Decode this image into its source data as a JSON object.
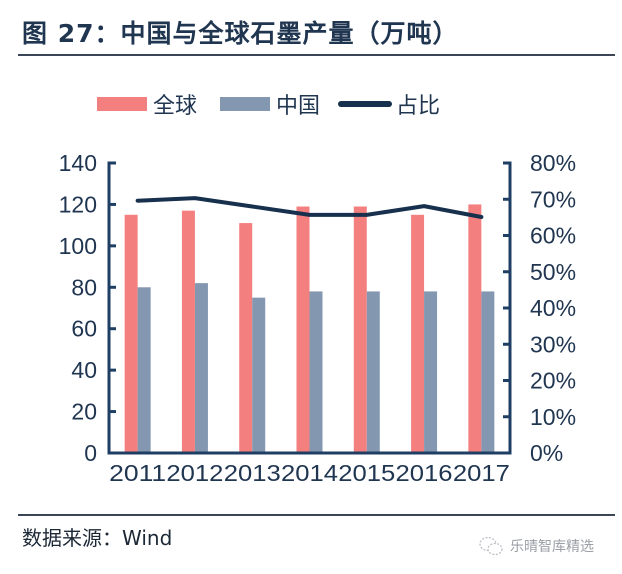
{
  "header": {
    "title": "图 27：中国与全球石墨产量（万吨）"
  },
  "legend": [
    {
      "label": "全球",
      "color": "#f47f7f",
      "kind": "bar"
    },
    {
      "label": "中国",
      "color": "#8497b0",
      "kind": "bar"
    },
    {
      "label": "占比",
      "color": "#16304d",
      "kind": "line"
    }
  ],
  "footer": {
    "source": "数据来源：Wind",
    "watermark": "乐晴智库精选"
  },
  "chart_data": {
    "type": "bar",
    "title": "图 27：中国与全球石墨产量（万吨）",
    "xlabel": "",
    "ylabel": "",
    "y2label": "",
    "categories": [
      "2011",
      "2012",
      "2013",
      "2014",
      "2015",
      "2016",
      "2017"
    ],
    "series": [
      {
        "name": "全球",
        "type": "bar",
        "axis": "left",
        "color": "#f47f7f",
        "values": [
          115,
          117,
          111,
          119,
          119,
          115,
          120
        ]
      },
      {
        "name": "中国",
        "type": "bar",
        "axis": "left",
        "color": "#8497b0",
        "values": [
          80,
          82,
          75,
          78,
          78,
          78,
          78
        ]
      },
      {
        "name": "占比",
        "type": "line",
        "axis": "right",
        "color": "#16304d",
        "values": [
          0.696,
          0.703,
          0.68,
          0.657,
          0.657,
          0.681,
          0.651
        ]
      }
    ],
    "ylim": [
      0,
      140
    ],
    "yticks": [
      "0",
      "20",
      "40",
      "60",
      "80",
      "100",
      "120",
      "140"
    ],
    "y2lim": [
      0,
      0.8
    ],
    "y2ticks": [
      "0%",
      "10%",
      "20%",
      "30%",
      "40%",
      "50%",
      "60%",
      "70%",
      "80%"
    ],
    "grid": false,
    "legend_position": "top"
  }
}
